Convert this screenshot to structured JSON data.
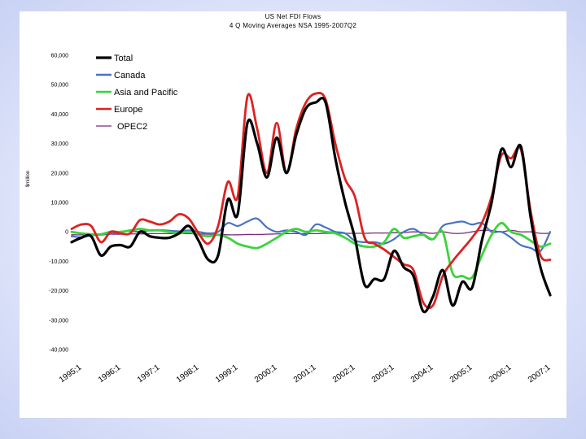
{
  "chart_data": {
    "type": "line",
    "title": "US Net FDI Flows",
    "subtitle": "4 Q Moving Averages NSA 1995-2007Q2",
    "ylabel": "$million",
    "xlabel": "",
    "ylim": [
      -40000,
      60000
    ],
    "y_ticks": [
      -40000,
      -30000,
      -20000,
      -10000,
      0,
      10000,
      20000,
      30000,
      40000,
      50000,
      60000
    ],
    "y_tick_labels": [
      "-40,000",
      "-30,000",
      "-20,000",
      "-10,000",
      "0",
      "10,000",
      "20,000",
      "30,000",
      "40,000",
      "50,000",
      "60,000"
    ],
    "x_tick_labels": [
      "1995;1",
      "1996;1",
      "1997;1",
      "1998;1",
      "1999;1",
      "2000;1",
      "2001;1",
      "2002;1",
      "2003;1",
      "2004;1",
      "2005;1",
      "2006;1",
      "2007;1"
    ],
    "x": [
      1995.0,
      1995.25,
      1995.5,
      1995.75,
      1996.0,
      1996.25,
      1996.5,
      1996.75,
      1997.0,
      1997.25,
      1997.5,
      1997.75,
      1998.0,
      1998.25,
      1998.5,
      1998.75,
      1999.0,
      1999.25,
      1999.5,
      1999.75,
      2000.0,
      2000.25,
      2000.5,
      2000.75,
      2001.0,
      2001.25,
      2001.5,
      2001.75,
      2002.0,
      2002.25,
      2002.5,
      2002.75,
      2003.0,
      2003.25,
      2003.5,
      2003.75,
      2004.0,
      2004.25,
      2004.5,
      2004.75,
      2005.0,
      2005.25,
      2005.5,
      2005.75,
      2006.0,
      2006.25,
      2006.5,
      2006.75,
      2007.0,
      2007.25
    ],
    "grid": false,
    "legend_position": "top-left",
    "series": [
      {
        "name": "Total",
        "color": "#000000",
        "values": [
          -3500,
          -2000,
          -1500,
          -8000,
          -5000,
          -4500,
          -5000,
          0,
          -1500,
          -2000,
          -2000,
          -500,
          2000,
          -3000,
          -9500,
          -8000,
          11000,
          6000,
          37000,
          30000,
          18500,
          32000,
          20000,
          33000,
          42000,
          44000,
          44000,
          25000,
          10000,
          -2000,
          -18000,
          -16000,
          -16000,
          -6500,
          -12000,
          -15000,
          -27000,
          -22000,
          -13000,
          -25000,
          -17000,
          -19000,
          -3000,
          10000,
          28000,
          22000,
          29000,
          5000,
          -12000,
          -21500
        ]
      },
      {
        "name": "Canada",
        "color": "#4a72c4",
        "values": [
          -1500,
          -1800,
          -1200,
          -1000,
          -600,
          0,
          300,
          0,
          500,
          600,
          400,
          200,
          500,
          0,
          -500,
          0,
          3000,
          2000,
          3500,
          4500,
          1500,
          0,
          500,
          0,
          -1000,
          2500,
          1500,
          0,
          -500,
          -3000,
          -3500,
          -3500,
          -4000,
          -2500,
          0,
          1000,
          -1000,
          -2500,
          2000,
          3000,
          3500,
          2500,
          3000,
          0,
          0,
          -2000,
          -4500,
          -5500,
          -6500,
          0
        ]
      },
      {
        "name": "Asia and Pacific",
        "color": "#3ad43a",
        "values": [
          0,
          -500,
          -800,
          -800,
          0,
          0,
          500,
          1000,
          500,
          500,
          0,
          -500,
          0,
          -1000,
          -1500,
          -1000,
          -2000,
          -4000,
          -5000,
          -5500,
          -4000,
          -2000,
          0,
          1000,
          0,
          500,
          0,
          -500,
          -2000,
          -4000,
          -5000,
          -5000,
          -3500,
          1000,
          -2000,
          -1500,
          -1000,
          -2500,
          0,
          -14000,
          -15000,
          -15500,
          -8000,
          -1000,
          3000,
          0,
          -1000,
          -3000,
          -5000,
          -4000
        ]
      },
      {
        "name": "Europe",
        "color": "#dd2222",
        "values": [
          1000,
          2500,
          2000,
          -3500,
          0,
          -500,
          -500,
          4000,
          3500,
          2500,
          3500,
          6000,
          4500,
          -500,
          -4000,
          2000,
          17000,
          12000,
          46000,
          35000,
          20000,
          37000,
          20000,
          35000,
          44000,
          47000,
          45000,
          30000,
          18000,
          12000,
          -2000,
          -4000,
          -6000,
          -8500,
          -11000,
          -13000,
          -24000,
          -25000,
          -15000,
          -10000,
          -6000,
          -2000,
          3000,
          12000,
          26000,
          25000,
          28000,
          7000,
          -8000,
          -9500
        ]
      },
      {
        "name": "OPEC2",
        "color": "#7a2a7a",
        "values": [
          -1000,
          -1000,
          -900,
          -900,
          -800,
          -800,
          -700,
          -700,
          -600,
          -600,
          -600,
          -600,
          -600,
          -700,
          -800,
          -800,
          -1000,
          -1000,
          -900,
          -900,
          -800,
          -700,
          -600,
          -600,
          -600,
          -600,
          -500,
          -500,
          -500,
          -500,
          -500,
          -400,
          -400,
          -300,
          -200,
          0,
          -200,
          -500,
          0,
          -500,
          -500,
          0,
          500,
          500,
          0,
          500,
          0,
          0,
          -500,
          -500
        ]
      }
    ]
  }
}
